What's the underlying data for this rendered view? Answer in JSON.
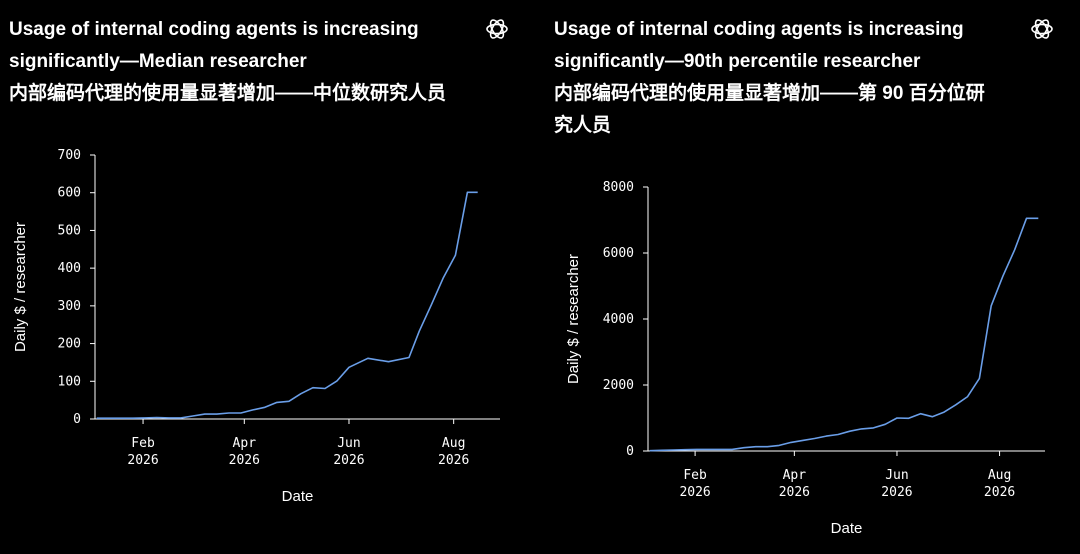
{
  "brand": {
    "logo_icon": "openai-logo-icon",
    "line_color": "#6a9ee8"
  },
  "chart_data": [
    {
      "type": "line",
      "title": "Usage of internal coding agents is increasing significantly—Median researcher",
      "subtitle": "内部编码代理的使用量显著增加——中位数研究人员",
      "xlabel": "Date",
      "ylabel": "Daily $ / researcher",
      "ylim": [
        0,
        700
      ],
      "xlim": [
        "2026-01-04",
        "2026-08-28"
      ],
      "yticks": [
        "0",
        "100",
        "200",
        "300",
        "400",
        "500",
        "600",
        "700"
      ],
      "yticks_values": [
        0,
        100,
        200,
        300,
        400,
        500,
        600,
        700
      ],
      "xticks": [
        {
          "month": "Feb",
          "year": "2026",
          "date": "2026-02-01"
        },
        {
          "month": "Apr",
          "year": "2026",
          "date": "2026-04-01"
        },
        {
          "month": "Jun",
          "year": "2026",
          "date": "2026-06-01"
        },
        {
          "month": "Aug",
          "year": "2026",
          "date": "2026-08-01"
        }
      ],
      "grid": false,
      "series": [
        {
          "x": [
            "2026-01-05",
            "2026-01-12",
            "2026-01-19",
            "2026-01-26",
            "2026-02-02",
            "2026-02-09",
            "2026-02-16",
            "2026-02-23",
            "2026-03-02",
            "2026-03-09",
            "2026-03-16",
            "2026-03-23",
            "2026-03-30",
            "2026-04-06",
            "2026-04-13",
            "2026-04-20",
            "2026-04-27",
            "2026-05-04",
            "2026-05-11",
            "2026-05-18",
            "2026-05-25",
            "2026-06-01",
            "2026-06-12",
            "2026-06-24",
            "2026-07-06",
            "2026-07-12",
            "2026-07-19",
            "2026-07-26",
            "2026-08-02",
            "2026-08-09",
            "2026-08-15"
          ],
          "y": [
            2,
            2,
            2,
            2,
            3,
            4,
            3,
            3,
            8,
            13,
            13,
            16,
            16,
            24,
            31,
            44,
            47,
            67,
            83,
            81,
            101,
            137,
            161,
            152,
            163,
            233,
            303,
            375,
            434,
            601,
            601
          ]
        }
      ]
    },
    {
      "type": "line",
      "title": "Usage of internal coding agents is increasing significantly—90th percentile researcher",
      "subtitle": "内部编码代理的使用量显著增加——第 90 百分位研究人员",
      "xlabel": "Date",
      "ylabel": "Daily $ / researcher",
      "ylim": [
        0,
        8000
      ],
      "xlim": [
        "2026-01-04",
        "2026-08-28"
      ],
      "yticks": [
        "0",
        "2000",
        "4000",
        "6000",
        "8000"
      ],
      "yticks_values": [
        0,
        2000,
        4000,
        6000,
        8000
      ],
      "xticks": [
        {
          "month": "Feb",
          "year": "2026",
          "date": "2026-02-01"
        },
        {
          "month": "Apr",
          "year": "2026",
          "date": "2026-04-01"
        },
        {
          "month": "Jun",
          "year": "2026",
          "date": "2026-06-01"
        },
        {
          "month": "Aug",
          "year": "2026",
          "date": "2026-08-01"
        }
      ],
      "grid": false,
      "series": [
        {
          "x": [
            "2026-01-05",
            "2026-01-12",
            "2026-01-19",
            "2026-01-26",
            "2026-02-02",
            "2026-02-09",
            "2026-02-16",
            "2026-02-23",
            "2026-03-02",
            "2026-03-09",
            "2026-03-16",
            "2026-03-23",
            "2026-03-30",
            "2026-04-06",
            "2026-04-13",
            "2026-04-20",
            "2026-04-27",
            "2026-05-04",
            "2026-05-11",
            "2026-05-18",
            "2026-05-25",
            "2026-06-01",
            "2026-06-08",
            "2026-06-15",
            "2026-06-22",
            "2026-06-29",
            "2026-07-06",
            "2026-07-13",
            "2026-07-20",
            "2026-07-27",
            "2026-08-03",
            "2026-08-10",
            "2026-08-17",
            "2026-08-24"
          ],
          "y": [
            10,
            20,
            30,
            40,
            50,
            50,
            50,
            50,
            100,
            130,
            130,
            170,
            260,
            320,
            380,
            450,
            500,
            600,
            670,
            700,
            810,
            1000,
            990,
            1130,
            1040,
            1180,
            1400,
            1650,
            2200,
            4400,
            5300,
            6100,
            7050,
            7050
          ]
        }
      ]
    }
  ]
}
